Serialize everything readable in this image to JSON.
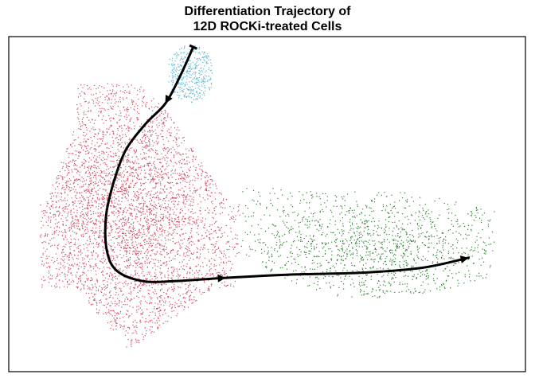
{
  "chart_data": {
    "type": "scatter",
    "title": [
      "Differentiation Trajectory of",
      "12D ROCKi-treated Cells"
    ],
    "xlabel": "",
    "ylabel": "",
    "axes_visible": false,
    "grid": false,
    "legend": "none",
    "xlim": [
      0,
      100
    ],
    "ylim": [
      0,
      100
    ],
    "series": [
      {
        "color": "#5bb8d6",
        "point_count": 400,
        "region": {
          "x": [
            31.5,
            39.5
          ],
          "y": [
            78,
            98
          ],
          "approx_center": [
            35,
            89
          ]
        }
      },
      {
        "color": "#d14a5e",
        "point_count": 4200,
        "region": {
          "x": [
            6,
            45
          ],
          "y": [
            7,
            86
          ],
          "approx_center": [
            23,
            50
          ]
        }
      },
      {
        "color": "#2e7d2e",
        "point_count": 1400,
        "region": {
          "x": [
            45,
            94
          ],
          "y": [
            18,
            57
          ],
          "approx_center": [
            72,
            37
          ]
        }
      }
    ],
    "trajectory": {
      "color": "#000000",
      "points": [
        [
          35.7,
          96.9
        ],
        [
          33.1,
          88
        ],
        [
          30.3,
          80
        ],
        [
          26.5,
          74
        ],
        [
          22.6,
          66
        ],
        [
          20.2,
          56
        ],
        [
          18.8,
          46
        ],
        [
          19.0,
          36
        ],
        [
          21.0,
          30
        ],
        [
          26.0,
          27
        ],
        [
          32.0,
          27
        ],
        [
          42.0,
          28
        ],
        [
          55.0,
          29
        ],
        [
          68.0,
          29.5
        ],
        [
          80.0,
          31
        ],
        [
          89.0,
          34
        ]
      ],
      "arrows_at": [
        2,
        11,
        15
      ]
    }
  }
}
